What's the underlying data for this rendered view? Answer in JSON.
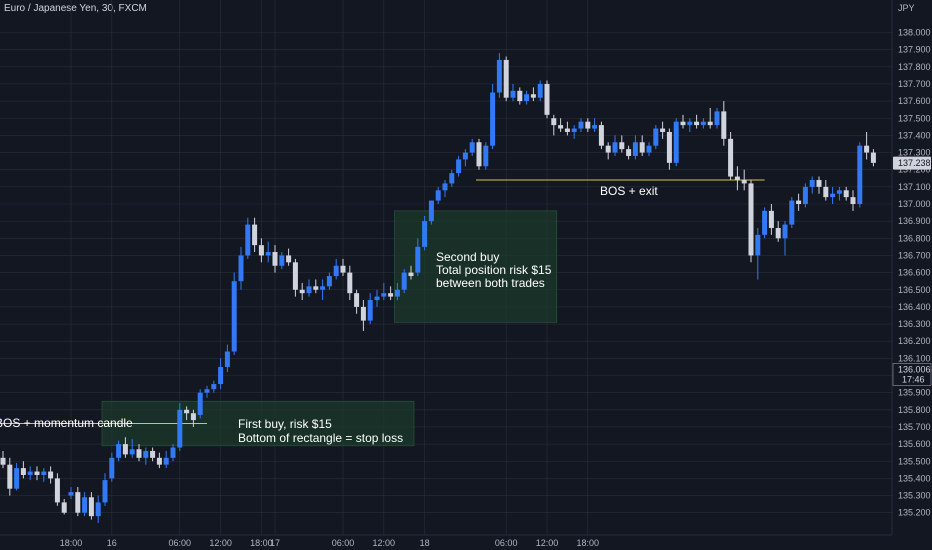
{
  "header": {
    "symbol_title": "Euro / Japanese Yen, 30, FXCM"
  },
  "colors": {
    "background": "#131722",
    "grid": "#2a2e39",
    "up_candle": "#3179f5",
    "down_candle": "#d1d4dc",
    "rectangle_fill": "#1c3a2c",
    "line": "#d6c73e",
    "text": "#ffffff",
    "axis_text": "#b2b5be"
  },
  "price_scale": {
    "currency_label": "JPY",
    "tick_labels": [
      "138.000",
      "137.900",
      "137.800",
      "137.700",
      "137.600",
      "137.500",
      "137.400",
      "137.300",
      "137.200",
      "137.100",
      "137.000",
      "136.900",
      "136.800",
      "136.700",
      "136.600",
      "136.500",
      "136.400",
      "136.300",
      "136.200",
      "136.100",
      "136.000",
      "135.900",
      "135.800",
      "135.700",
      "135.600",
      "135.500",
      "135.400",
      "135.300",
      "135.200"
    ],
    "current_price_tag": "137.238",
    "crosshair_price_tag": "136.006",
    "crosshair_time_tag": "17:46"
  },
  "time_scale": {
    "tick_labels": [
      "18:00",
      "16",
      "06:00",
      "12:00",
      "18:00",
      "17",
      "06:00",
      "12:00",
      "18",
      "06:00",
      "12:00",
      "18:00"
    ],
    "tick_times": [
      10,
      16,
      26,
      32,
      38,
      40,
      50,
      56,
      62,
      74,
      80,
      86
    ]
  },
  "annotations": {
    "bos_momentum": "BOS + momentum candle",
    "first_buy_line1": "First buy, risk $15",
    "first_buy_line2": "Bottom of rectangle = stop loss",
    "second_buy_line1": "Second buy",
    "second_buy_line2": "Total position risk $15",
    "second_buy_line3": "between both trades",
    "bos_exit": "BOS + exit"
  },
  "chart_data": {
    "type": "candlestick",
    "title": "Euro / Japanese Yen, 30, FXCM",
    "ylim": [
      135.12,
      138.1
    ],
    "ohlc": [
      {
        "t": 0,
        "o": 135.52,
        "h": 135.56,
        "l": 135.46,
        "c": 135.48
      },
      {
        "t": 1,
        "o": 135.48,
        "h": 135.52,
        "l": 135.3,
        "c": 135.34
      },
      {
        "t": 2,
        "o": 135.34,
        "h": 135.49,
        "l": 135.33,
        "c": 135.46
      },
      {
        "t": 3,
        "o": 135.46,
        "h": 135.5,
        "l": 135.4,
        "c": 135.42
      },
      {
        "t": 4,
        "o": 135.42,
        "h": 135.47,
        "l": 135.39,
        "c": 135.44
      },
      {
        "t": 5,
        "o": 135.44,
        "h": 135.47,
        "l": 135.39,
        "c": 135.42
      },
      {
        "t": 6,
        "o": 135.42,
        "h": 135.46,
        "l": 135.38,
        "c": 135.44
      },
      {
        "t": 7,
        "o": 135.44,
        "h": 135.47,
        "l": 135.37,
        "c": 135.4
      },
      {
        "t": 8,
        "o": 135.4,
        "h": 135.43,
        "l": 135.24,
        "c": 135.26
      },
      {
        "t": 9,
        "o": 135.26,
        "h": 135.28,
        "l": 135.19,
        "c": 135.2
      },
      {
        "t": 10,
        "o": 135.3,
        "h": 135.35,
        "l": 135.28,
        "c": 135.32
      },
      {
        "t": 11,
        "o": 135.32,
        "h": 135.35,
        "l": 135.18,
        "c": 135.2
      },
      {
        "t": 12,
        "o": 135.2,
        "h": 135.32,
        "l": 135.18,
        "c": 135.29
      },
      {
        "t": 13,
        "o": 135.29,
        "h": 135.32,
        "l": 135.16,
        "c": 135.18
      },
      {
        "t": 14,
        "o": 135.18,
        "h": 135.3,
        "l": 135.14,
        "c": 135.26
      },
      {
        "t": 15,
        "o": 135.26,
        "h": 135.43,
        "l": 135.24,
        "c": 135.39
      },
      {
        "t": 16,
        "o": 135.4,
        "h": 135.55,
        "l": 135.38,
        "c": 135.52
      },
      {
        "t": 17,
        "o": 135.52,
        "h": 135.62,
        "l": 135.5,
        "c": 135.6
      },
      {
        "t": 18,
        "o": 135.6,
        "h": 135.64,
        "l": 135.52,
        "c": 135.54
      },
      {
        "t": 19,
        "o": 135.54,
        "h": 135.63,
        "l": 135.52,
        "c": 135.57
      },
      {
        "t": 20,
        "o": 135.57,
        "h": 135.6,
        "l": 135.5,
        "c": 135.52
      },
      {
        "t": 21,
        "o": 135.52,
        "h": 135.58,
        "l": 135.48,
        "c": 135.56
      },
      {
        "t": 22,
        "o": 135.56,
        "h": 135.58,
        "l": 135.5,
        "c": 135.52
      },
      {
        "t": 23,
        "o": 135.52,
        "h": 135.55,
        "l": 135.46,
        "c": 135.48
      },
      {
        "t": 24,
        "o": 135.48,
        "h": 135.56,
        "l": 135.46,
        "c": 135.52
      },
      {
        "t": 25,
        "o": 135.52,
        "h": 135.6,
        "l": 135.5,
        "c": 135.58
      },
      {
        "t": 26,
        "o": 135.58,
        "h": 135.84,
        "l": 135.56,
        "c": 135.8
      },
      {
        "t": 27,
        "o": 135.8,
        "h": 135.82,
        "l": 135.74,
        "c": 135.78
      },
      {
        "t": 28,
        "o": 135.78,
        "h": 135.8,
        "l": 135.7,
        "c": 135.74
      },
      {
        "t": 29,
        "o": 135.77,
        "h": 135.92,
        "l": 135.75,
        "c": 135.9
      },
      {
        "t": 30,
        "o": 135.9,
        "h": 135.94,
        "l": 135.87,
        "c": 135.92
      },
      {
        "t": 31,
        "o": 135.92,
        "h": 135.97,
        "l": 135.9,
        "c": 135.95
      },
      {
        "t": 32,
        "o": 135.95,
        "h": 136.1,
        "l": 135.92,
        "c": 136.05
      },
      {
        "t": 33,
        "o": 136.05,
        "h": 136.18,
        "l": 136.02,
        "c": 136.14
      },
      {
        "t": 34,
        "o": 136.14,
        "h": 136.6,
        "l": 136.12,
        "c": 136.55
      },
      {
        "t": 35,
        "o": 136.55,
        "h": 136.75,
        "l": 136.5,
        "c": 136.7
      },
      {
        "t": 36,
        "o": 136.7,
        "h": 136.92,
        "l": 136.68,
        "c": 136.88
      },
      {
        "t": 37,
        "o": 136.88,
        "h": 136.92,
        "l": 136.72,
        "c": 136.76
      },
      {
        "t": 38,
        "o": 136.76,
        "h": 136.8,
        "l": 136.66,
        "c": 136.7
      },
      {
        "t": 39,
        "o": 136.7,
        "h": 136.78,
        "l": 136.66,
        "c": 136.72
      },
      {
        "t": 40,
        "o": 136.72,
        "h": 136.76,
        "l": 136.6,
        "c": 136.64
      },
      {
        "t": 41,
        "o": 136.64,
        "h": 136.72,
        "l": 136.62,
        "c": 136.7
      },
      {
        "t": 42,
        "o": 136.7,
        "h": 136.74,
        "l": 136.64,
        "c": 136.66
      },
      {
        "t": 43,
        "o": 136.66,
        "h": 136.68,
        "l": 136.46,
        "c": 136.5
      },
      {
        "t": 44,
        "o": 136.5,
        "h": 136.54,
        "l": 136.44,
        "c": 136.48
      },
      {
        "t": 45,
        "o": 136.48,
        "h": 136.56,
        "l": 136.46,
        "c": 136.52
      },
      {
        "t": 46,
        "o": 136.52,
        "h": 136.56,
        "l": 136.48,
        "c": 136.5
      },
      {
        "t": 47,
        "o": 136.5,
        "h": 136.56,
        "l": 136.44,
        "c": 136.52
      },
      {
        "t": 48,
        "o": 136.52,
        "h": 136.6,
        "l": 136.5,
        "c": 136.58
      },
      {
        "t": 49,
        "o": 136.58,
        "h": 136.68,
        "l": 136.56,
        "c": 136.64
      },
      {
        "t": 50,
        "o": 136.64,
        "h": 136.68,
        "l": 136.58,
        "c": 136.6
      },
      {
        "t": 51,
        "o": 136.6,
        "h": 136.64,
        "l": 136.44,
        "c": 136.48
      },
      {
        "t": 52,
        "o": 136.48,
        "h": 136.5,
        "l": 136.36,
        "c": 136.4
      },
      {
        "t": 53,
        "o": 136.4,
        "h": 136.44,
        "l": 136.26,
        "c": 136.32
      },
      {
        "t": 54,
        "o": 136.32,
        "h": 136.48,
        "l": 136.3,
        "c": 136.44
      },
      {
        "t": 55,
        "o": 136.44,
        "h": 136.5,
        "l": 136.4,
        "c": 136.46
      },
      {
        "t": 56,
        "o": 136.46,
        "h": 136.54,
        "l": 136.44,
        "c": 136.48
      },
      {
        "t": 57,
        "o": 136.48,
        "h": 136.52,
        "l": 136.44,
        "c": 136.46
      },
      {
        "t": 58,
        "o": 136.46,
        "h": 136.54,
        "l": 136.44,
        "c": 136.5
      },
      {
        "t": 59,
        "o": 136.5,
        "h": 136.62,
        "l": 136.48,
        "c": 136.6
      },
      {
        "t": 60,
        "o": 136.6,
        "h": 136.64,
        "l": 136.56,
        "c": 136.58
      },
      {
        "t": 61,
        "o": 136.6,
        "h": 136.8,
        "l": 136.58,
        "c": 136.75
      },
      {
        "t": 62,
        "o": 136.75,
        "h": 136.93,
        "l": 136.73,
        "c": 136.9
      },
      {
        "t": 63,
        "o": 136.9,
        "h": 137.02,
        "l": 136.88,
        "c": 137.02
      },
      {
        "t": 64,
        "o": 137.02,
        "h": 137.1,
        "l": 137.0,
        "c": 137.08
      },
      {
        "t": 65,
        "o": 137.08,
        "h": 137.14,
        "l": 137.04,
        "c": 137.12
      },
      {
        "t": 66,
        "o": 137.12,
        "h": 137.2,
        "l": 137.1,
        "c": 137.18
      },
      {
        "t": 67,
        "o": 137.18,
        "h": 137.28,
        "l": 137.16,
        "c": 137.26
      },
      {
        "t": 68,
        "o": 137.26,
        "h": 137.32,
        "l": 137.22,
        "c": 137.3
      },
      {
        "t": 69,
        "o": 137.3,
        "h": 137.38,
        "l": 137.28,
        "c": 137.36
      },
      {
        "t": 70,
        "o": 137.36,
        "h": 137.38,
        "l": 137.2,
        "c": 137.22
      },
      {
        "t": 71,
        "o": 137.22,
        "h": 137.36,
        "l": 137.2,
        "c": 137.34
      },
      {
        "t": 72,
        "o": 137.34,
        "h": 137.7,
        "l": 137.32,
        "c": 137.65
      },
      {
        "t": 73,
        "o": 137.65,
        "h": 137.88,
        "l": 137.62,
        "c": 137.84
      },
      {
        "t": 74,
        "o": 137.84,
        "h": 137.86,
        "l": 137.6,
        "c": 137.62
      },
      {
        "t": 75,
        "o": 137.62,
        "h": 137.7,
        "l": 137.6,
        "c": 137.66
      },
      {
        "t": 76,
        "o": 137.66,
        "h": 137.68,
        "l": 137.58,
        "c": 137.6
      },
      {
        "t": 77,
        "o": 137.6,
        "h": 137.66,
        "l": 137.58,
        "c": 137.64
      },
      {
        "t": 78,
        "o": 137.64,
        "h": 137.68,
        "l": 137.6,
        "c": 137.62
      },
      {
        "t": 79,
        "o": 137.62,
        "h": 137.72,
        "l": 137.6,
        "c": 137.7
      },
      {
        "t": 80,
        "o": 137.7,
        "h": 137.72,
        "l": 137.5,
        "c": 137.52
      },
      {
        "t": 81,
        "o": 137.5,
        "h": 137.52,
        "l": 137.4,
        "c": 137.46
      },
      {
        "t": 82,
        "o": 137.46,
        "h": 137.5,
        "l": 137.42,
        "c": 137.44
      },
      {
        "t": 83,
        "o": 137.44,
        "h": 137.48,
        "l": 137.4,
        "c": 137.42
      },
      {
        "t": 84,
        "o": 137.42,
        "h": 137.46,
        "l": 137.38,
        "c": 137.44
      },
      {
        "t": 85,
        "o": 137.44,
        "h": 137.5,
        "l": 137.42,
        "c": 137.48
      },
      {
        "t": 86,
        "o": 137.48,
        "h": 137.5,
        "l": 137.42,
        "c": 137.44
      },
      {
        "t": 87,
        "o": 137.44,
        "h": 137.5,
        "l": 137.42,
        "c": 137.46
      },
      {
        "t": 88,
        "o": 137.46,
        "h": 137.48,
        "l": 137.32,
        "c": 137.34
      },
      {
        "t": 89,
        "o": 137.34,
        "h": 137.36,
        "l": 137.26,
        "c": 137.3
      },
      {
        "t": 90,
        "o": 137.3,
        "h": 137.4,
        "l": 137.28,
        "c": 137.36
      },
      {
        "t": 91,
        "o": 137.36,
        "h": 137.4,
        "l": 137.3,
        "c": 137.32
      },
      {
        "t": 92,
        "o": 137.32,
        "h": 137.34,
        "l": 137.26,
        "c": 137.28
      },
      {
        "t": 93,
        "o": 137.28,
        "h": 137.4,
        "l": 137.26,
        "c": 137.36
      },
      {
        "t": 94,
        "o": 137.36,
        "h": 137.4,
        "l": 137.28,
        "c": 137.3
      },
      {
        "t": 95,
        "o": 137.3,
        "h": 137.36,
        "l": 137.28,
        "c": 137.34
      },
      {
        "t": 96,
        "o": 137.34,
        "h": 137.46,
        "l": 137.32,
        "c": 137.44
      },
      {
        "t": 97,
        "o": 137.44,
        "h": 137.48,
        "l": 137.38,
        "c": 137.42
      },
      {
        "t": 98,
        "o": 137.42,
        "h": 137.44,
        "l": 137.2,
        "c": 137.24
      },
      {
        "t": 99,
        "o": 137.24,
        "h": 137.5,
        "l": 137.22,
        "c": 137.48
      },
      {
        "t": 100,
        "o": 137.48,
        "h": 137.52,
        "l": 137.44,
        "c": 137.46
      },
      {
        "t": 101,
        "o": 137.46,
        "h": 137.5,
        "l": 137.42,
        "c": 137.48
      },
      {
        "t": 102,
        "o": 137.48,
        "h": 137.52,
        "l": 137.44,
        "c": 137.46
      },
      {
        "t": 103,
        "o": 137.46,
        "h": 137.5,
        "l": 137.44,
        "c": 137.48
      },
      {
        "t": 104,
        "o": 137.48,
        "h": 137.56,
        "l": 137.44,
        "c": 137.46
      },
      {
        "t": 105,
        "o": 137.46,
        "h": 137.56,
        "l": 137.44,
        "c": 137.54
      },
      {
        "t": 106,
        "o": 137.54,
        "h": 137.6,
        "l": 137.34,
        "c": 137.38
      },
      {
        "t": 107,
        "o": 137.38,
        "h": 137.42,
        "l": 137.14,
        "c": 137.16
      },
      {
        "t": 108,
        "o": 137.16,
        "h": 137.22,
        "l": 137.08,
        "c": 137.14
      },
      {
        "t": 109,
        "o": 137.14,
        "h": 137.2,
        "l": 137.08,
        "c": 137.12
      },
      {
        "t": 110,
        "o": 137.12,
        "h": 137.14,
        "l": 136.66,
        "c": 136.7
      },
      {
        "t": 111,
        "o": 136.7,
        "h": 136.86,
        "l": 136.56,
        "c": 136.82
      },
      {
        "t": 112,
        "o": 136.82,
        "h": 136.98,
        "l": 136.8,
        "c": 136.96
      },
      {
        "t": 113,
        "o": 136.96,
        "h": 137.0,
        "l": 136.82,
        "c": 136.86
      },
      {
        "t": 114,
        "o": 136.86,
        "h": 136.9,
        "l": 136.78,
        "c": 136.8
      },
      {
        "t": 115,
        "o": 136.8,
        "h": 136.9,
        "l": 136.7,
        "c": 136.88
      },
      {
        "t": 116,
        "o": 136.88,
        "h": 137.04,
        "l": 136.86,
        "c": 137.02
      },
      {
        "t": 117,
        "o": 137.02,
        "h": 137.06,
        "l": 136.96,
        "c": 137.0
      },
      {
        "t": 118,
        "o": 137.0,
        "h": 137.12,
        "l": 136.98,
        "c": 137.1
      },
      {
        "t": 119,
        "o": 137.1,
        "h": 137.16,
        "l": 137.06,
        "c": 137.14
      },
      {
        "t": 120,
        "o": 137.14,
        "h": 137.16,
        "l": 137.06,
        "c": 137.1
      },
      {
        "t": 121,
        "o": 137.1,
        "h": 137.14,
        "l": 137.02,
        "c": 137.04
      },
      {
        "t": 122,
        "o": 137.04,
        "h": 137.1,
        "l": 137.0,
        "c": 137.06
      },
      {
        "t": 123,
        "o": 137.06,
        "h": 137.1,
        "l": 137.02,
        "c": 137.08
      },
      {
        "t": 124,
        "o": 137.08,
        "h": 137.1,
        "l": 137.02,
        "c": 137.04
      },
      {
        "t": 125,
        "o": 137.04,
        "h": 137.08,
        "l": 136.96,
        "c": 137.0
      },
      {
        "t": 126,
        "o": 137.0,
        "h": 137.36,
        "l": 136.98,
        "c": 137.34
      },
      {
        "t": 127,
        "o": 137.34,
        "h": 137.42,
        "l": 137.26,
        "c": 137.3
      },
      {
        "t": 128,
        "o": 137.3,
        "h": 137.32,
        "l": 137.22,
        "c": 137.24
      }
    ],
    "rectangles": [
      {
        "name": "first-buy-zone",
        "t0": 15,
        "t1": 60,
        "p_top": 135.85,
        "p_bottom": 135.59
      },
      {
        "name": "second-buy-zone",
        "t0": 58,
        "t1": 81,
        "p_top": 136.96,
        "p_bottom": 136.31
      }
    ],
    "horizontal_lines": [
      {
        "name": "bos-momentum-line",
        "t0": 0,
        "t1": 30,
        "price": 135.72
      },
      {
        "name": "bos-exit-line",
        "t0": 70,
        "t1": 112,
        "price": 137.14
      }
    ],
    "current_price": 137.238,
    "crosshair_price": 136.006
  }
}
